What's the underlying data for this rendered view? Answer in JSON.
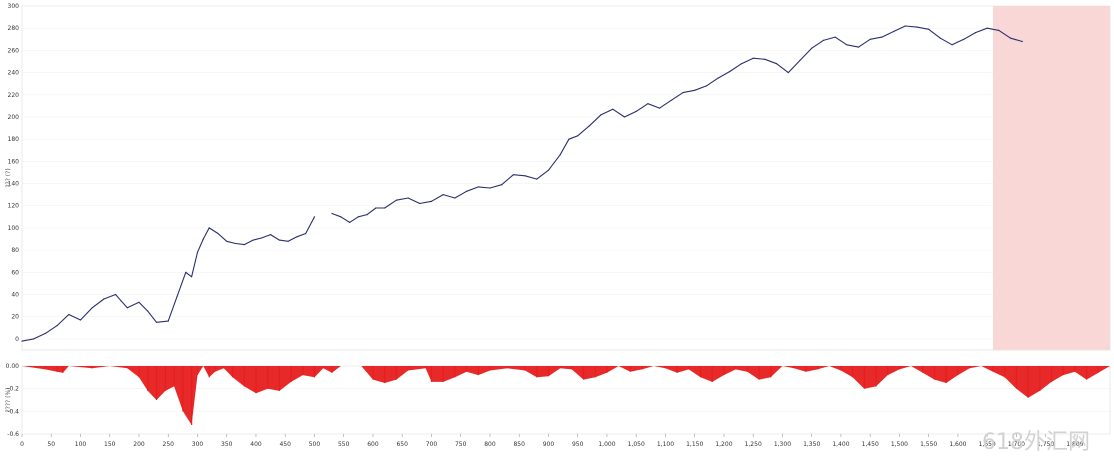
{
  "watermark": "618外汇网",
  "chart_data": [
    {
      "type": "line",
      "panel": "equity",
      "title": "",
      "xlabel": "",
      "ylabel": "??? (?)",
      "xlim": [
        0,
        1860
      ],
      "ylim": [
        -10,
        300
      ],
      "yticks": [
        "0",
        "20",
        "40",
        "60",
        "80",
        "100",
        "120",
        "140",
        "160",
        "180",
        "200",
        "220",
        "240",
        "260",
        "280",
        "300"
      ],
      "grid": true,
      "series": [
        {
          "color": "#2b2f6e",
          "x": [
            0,
            20,
            40,
            60,
            80,
            100,
            120,
            140,
            160,
            170,
            180,
            200,
            215,
            230,
            250,
            265,
            280,
            290,
            300,
            310,
            320,
            335,
            350,
            365,
            380,
            395,
            410,
            425,
            440,
            455,
            470,
            485,
            500,
            515,
            530,
            545,
            560,
            575,
            590,
            605,
            620,
            640,
            660,
            680,
            700,
            720,
            740,
            760,
            780,
            800,
            820,
            840,
            860,
            880,
            900,
            920,
            935,
            950,
            970,
            990,
            1010,
            1030,
            1050,
            1070,
            1090,
            1110,
            1130,
            1150,
            1170,
            1190,
            1210,
            1230,
            1250,
            1270,
            1290,
            1310,
            1330,
            1350,
            1370,
            1390,
            1410,
            1430,
            1450,
            1470,
            1490,
            1510,
            1530,
            1550,
            1570,
            1590,
            1610,
            1630,
            1650,
            1670,
            1690,
            1710
          ],
          "y": [
            -2,
            0,
            5,
            12,
            22,
            17,
            28,
            36,
            40,
            34,
            28,
            33,
            25,
            15,
            16,
            38,
            60,
            56,
            78,
            90,
            100,
            95,
            88,
            86,
            85,
            89,
            91,
            94,
            89,
            88,
            92,
            95,
            110,
            null,
            113,
            110,
            105,
            110,
            112,
            118,
            118,
            125,
            127,
            122,
            124,
            130,
            127,
            133,
            137,
            136,
            139,
            148,
            147,
            144,
            152,
            166,
            180,
            183,
            192,
            202,
            207,
            200,
            205,
            212,
            208,
            215,
            222,
            224,
            228,
            235,
            241,
            248,
            253,
            252,
            248,
            240,
            251,
            262,
            269,
            272,
            265,
            263,
            270,
            272,
            277,
            282,
            281,
            279,
            271,
            265,
            270,
            276,
            280,
            278,
            271,
            268
          ]
        }
      ],
      "shaded_region": {
        "x": [
          1660,
          1860
        ],
        "color": "#f9d7d7"
      }
    },
    {
      "type": "area",
      "panel": "drawdown",
      "title": "",
      "ylabel": "???? (%)",
      "ylim": [
        -0.6,
        0
      ],
      "yticks": [
        "0.00",
        "-0.2",
        "-0.4",
        "-0.6"
      ],
      "xticks": [
        "0",
        "50",
        "100",
        "150",
        "200",
        "250",
        "300",
        "350",
        "400",
        "450",
        "500",
        "550",
        "600",
        "650",
        "700",
        "750",
        "800",
        "850",
        "900",
        "950",
        "1,000",
        "1,050",
        "1,100",
        "1,150",
        "1,200",
        "1,250",
        "1,300",
        "1,350",
        "1,400",
        "1,450",
        "1,500",
        "1,550",
        "1,600",
        "1,650",
        "1,700",
        "1,750",
        "1,800"
      ],
      "series": [
        {
          "color": "#e61e1e",
          "x": [
            0,
            40,
            60,
            70,
            80,
            120,
            150,
            180,
            200,
            215,
            230,
            245,
            260,
            275,
            290,
            300,
            310,
            320,
            330,
            345,
            360,
            380,
            400,
            420,
            440,
            460,
            480,
            500,
            515,
            530,
            545,
            560,
            580,
            600,
            620,
            640,
            660,
            690,
            700,
            720,
            740,
            760,
            780,
            800,
            830,
            860,
            880,
            900,
            920,
            940,
            960,
            980,
            1000,
            1020,
            1040,
            1060,
            1080,
            1100,
            1120,
            1140,
            1160,
            1180,
            1200,
            1220,
            1240,
            1260,
            1280,
            1300,
            1320,
            1340,
            1360,
            1380,
            1400,
            1420,
            1440,
            1460,
            1480,
            1500,
            1520,
            1540,
            1560,
            1580,
            1600,
            1620,
            1640,
            1660,
            1680,
            1700,
            1720,
            1740,
            1760,
            1780,
            1800,
            1820,
            1840,
            1860
          ],
          "y": [
            0,
            -0.03,
            -0.05,
            -0.06,
            0,
            -0.02,
            0,
            -0.02,
            -0.1,
            -0.22,
            -0.3,
            -0.22,
            -0.18,
            -0.4,
            -0.52,
            -0.08,
            0,
            -0.1,
            -0.05,
            -0.02,
            -0.1,
            -0.18,
            -0.24,
            -0.2,
            -0.22,
            -0.14,
            -0.08,
            -0.1,
            -0.02,
            -0.06,
            0,
            0,
            0,
            -0.12,
            -0.15,
            -0.12,
            -0.04,
            -0.02,
            -0.14,
            -0.14,
            -0.1,
            -0.05,
            -0.08,
            -0.04,
            -0.02,
            -0.04,
            -0.1,
            -0.09,
            -0.02,
            -0.03,
            -0.12,
            -0.1,
            -0.06,
            0,
            -0.05,
            -0.03,
            0,
            -0.02,
            -0.06,
            -0.03,
            -0.1,
            -0.14,
            -0.08,
            -0.03,
            -0.05,
            -0.12,
            -0.1,
            0,
            -0.02,
            -0.05,
            -0.03,
            0,
            -0.04,
            -0.1,
            -0.2,
            -0.18,
            -0.08,
            -0.03,
            0,
            -0.06,
            -0.12,
            -0.15,
            -0.08,
            -0.02,
            0,
            -0.05,
            -0.1,
            -0.2,
            -0.28,
            -0.22,
            -0.14,
            -0.08,
            -0.05,
            -0.12,
            -0.06,
            0
          ]
        }
      ]
    }
  ]
}
